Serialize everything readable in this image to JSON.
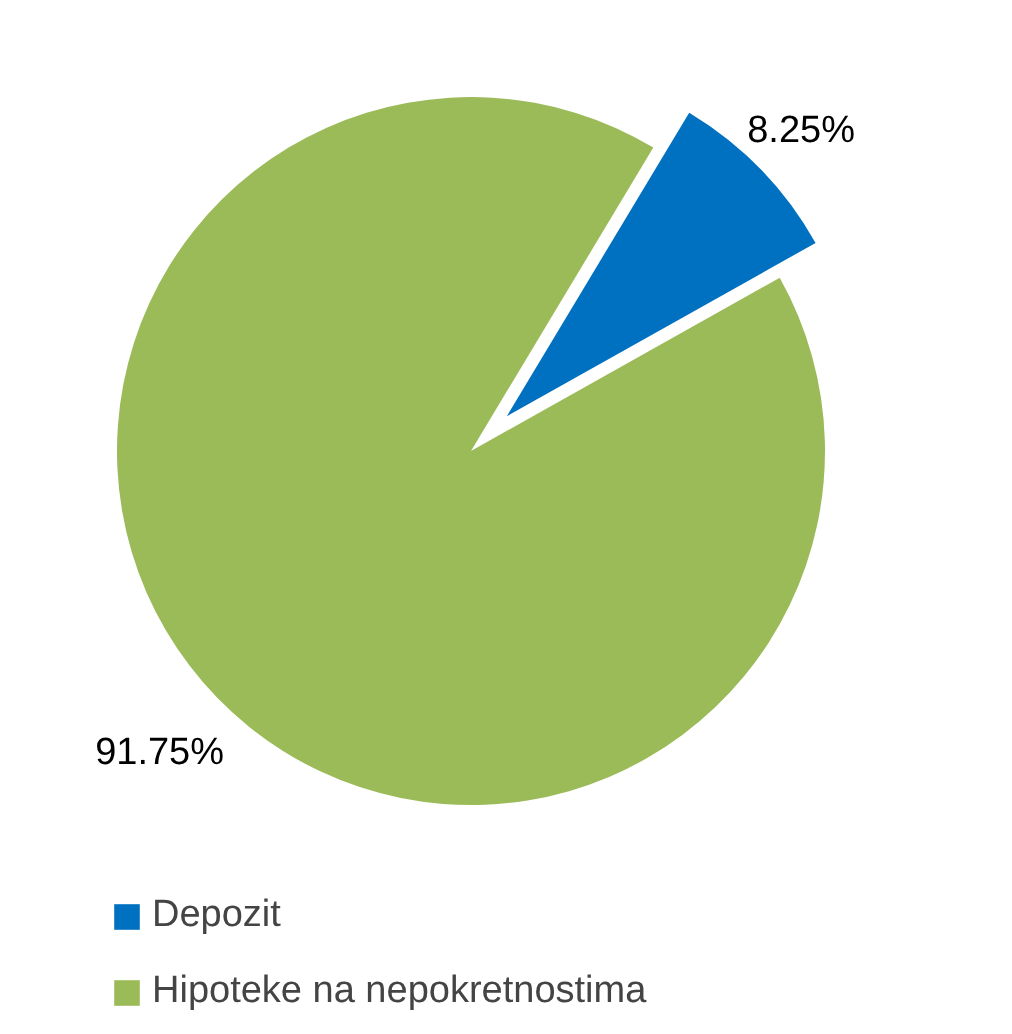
{
  "chart_data": {
    "type": "pie",
    "categories": [
      "Depozit",
      "Hipoteke na nepokretnostima"
    ],
    "values": [
      8.25,
      91.75
    ],
    "colors": [
      "#0070c0",
      "#9bbb59"
    ],
    "value_labels": [
      "8.25%",
      "91.75%"
    ],
    "legend": "bottom left"
  }
}
